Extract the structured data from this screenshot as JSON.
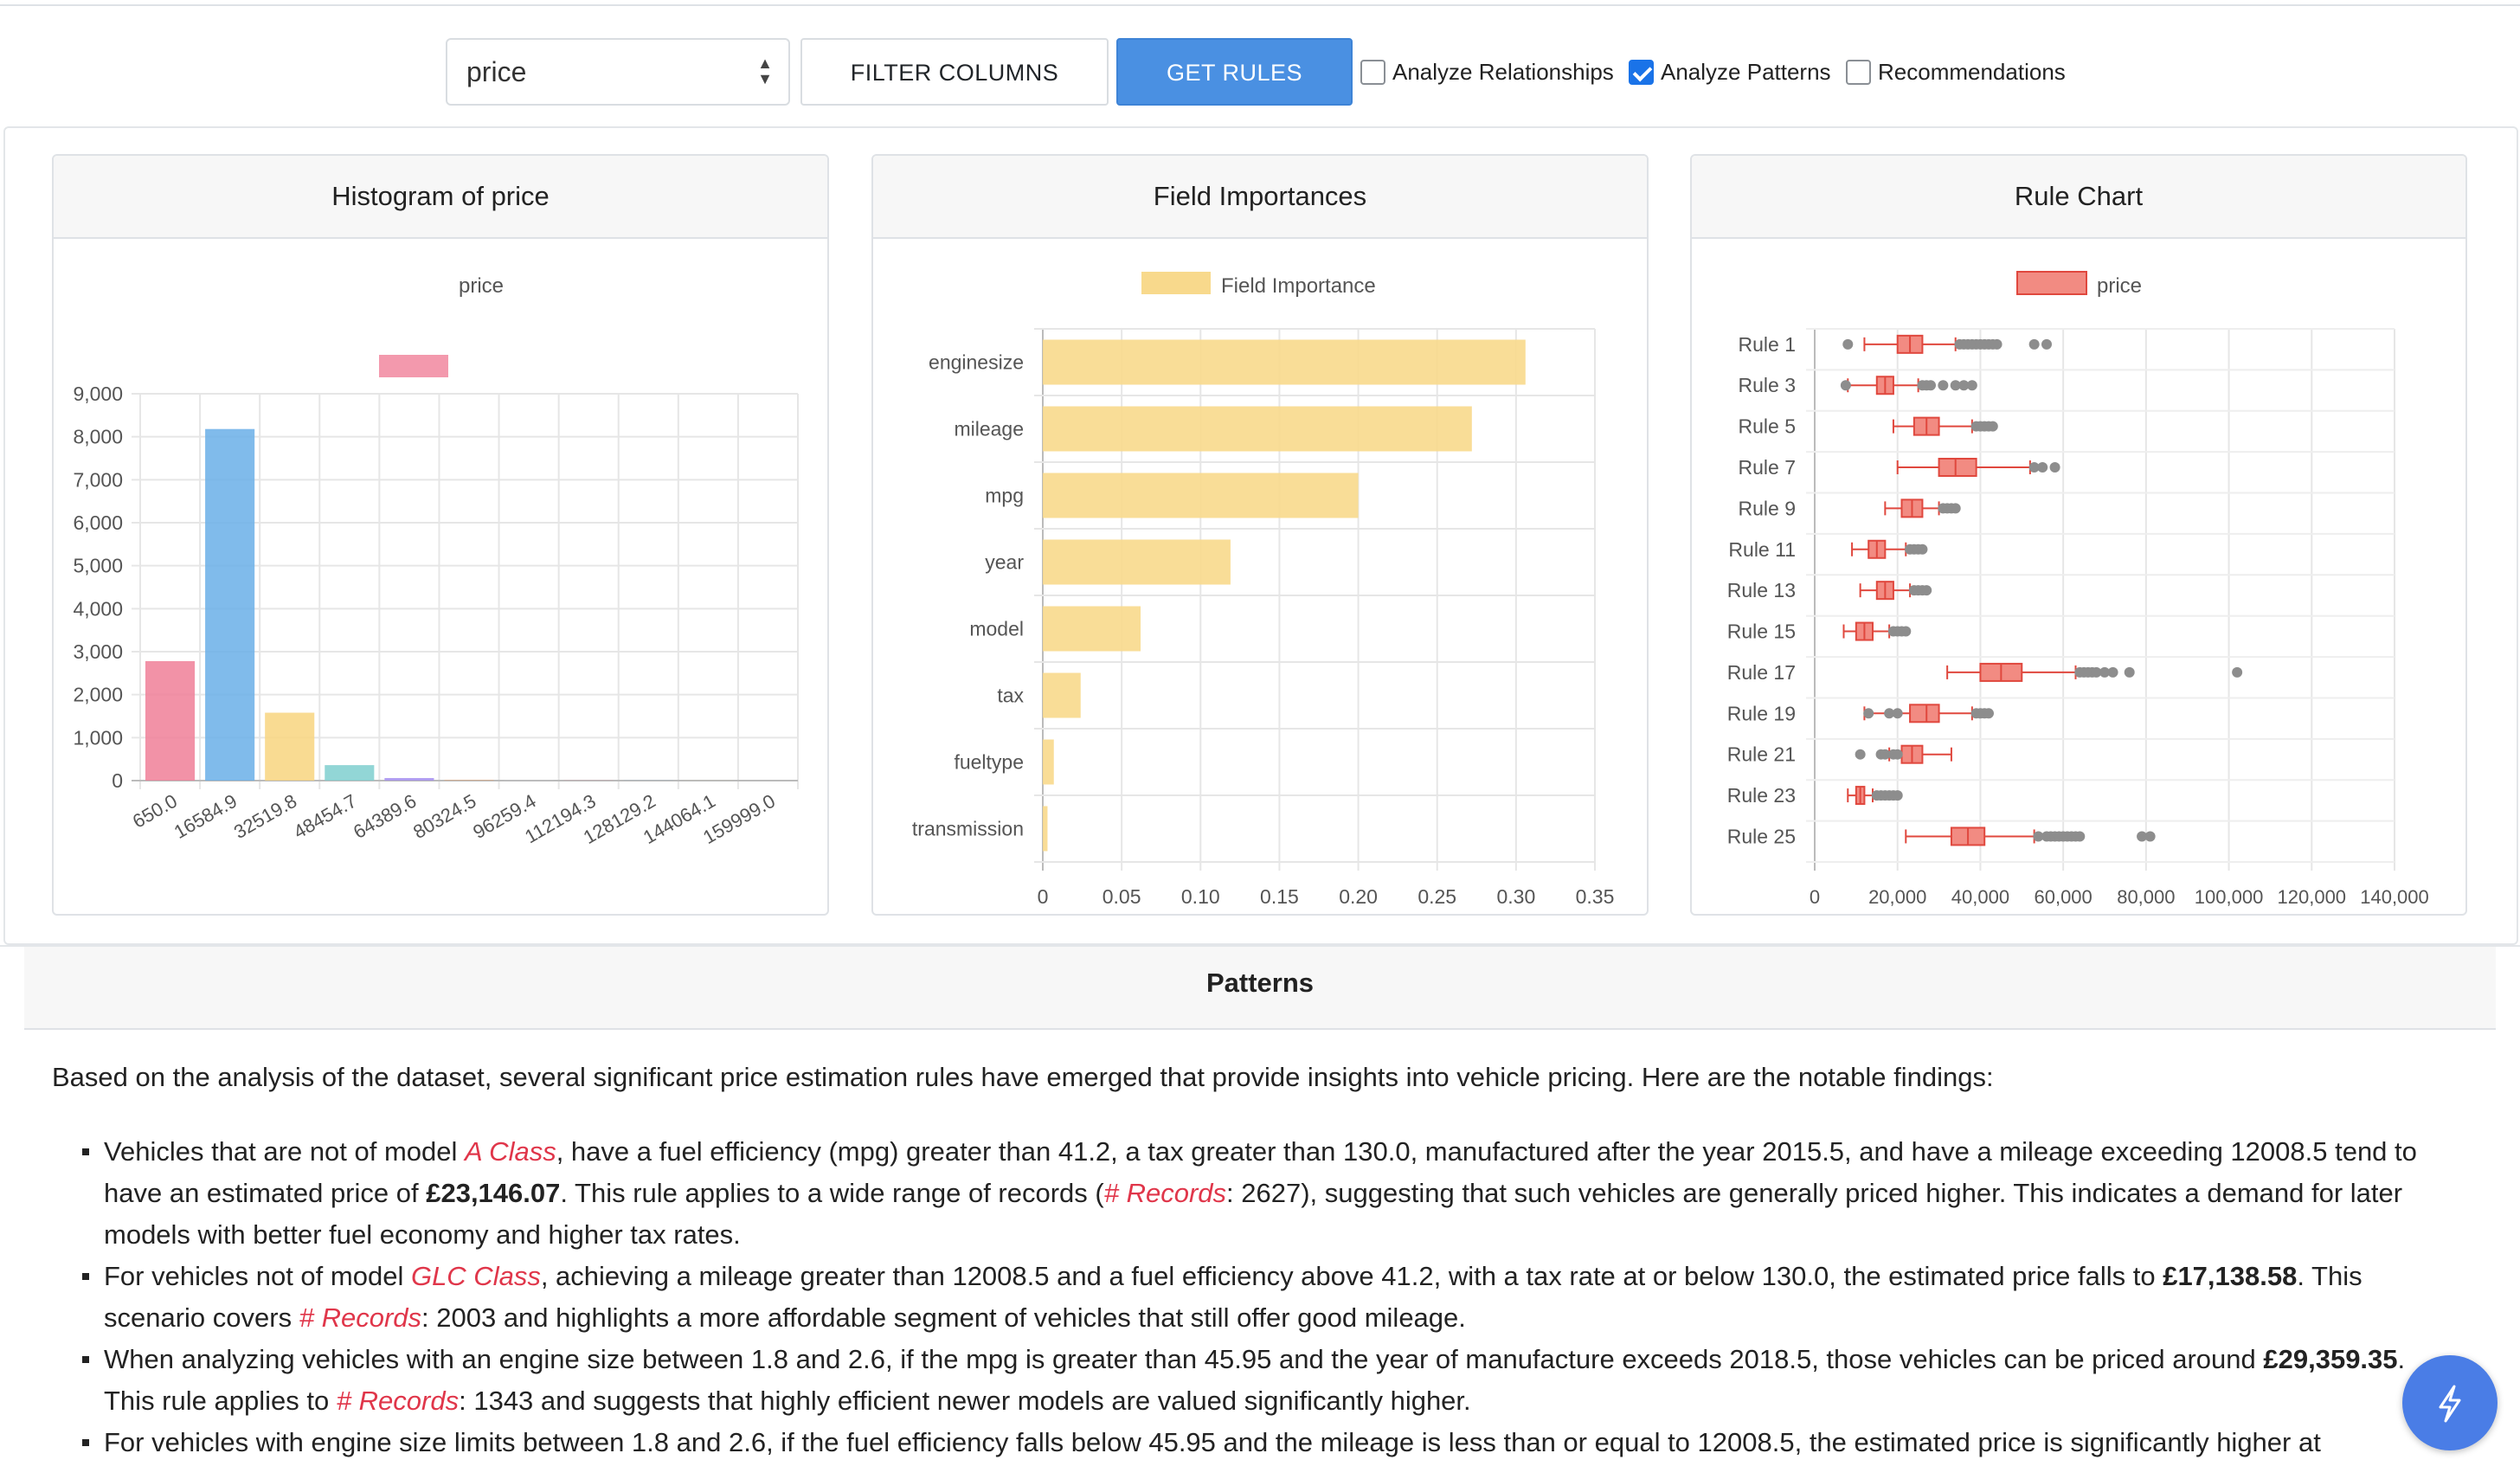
{
  "toolbar": {
    "target_select": "price",
    "filter_button": "FILTER COLUMNS",
    "rules_button": "GET RULES",
    "checkboxes": [
      {
        "label": "Analyze Relationships",
        "checked": false
      },
      {
        "label": "Analyze Patterns",
        "checked": true
      },
      {
        "label": "Recommendations",
        "checked": false
      }
    ]
  },
  "cards": {
    "histogram_title": "Histogram of price",
    "importance_title": "Field Importances",
    "rule_title": "Rule Chart"
  },
  "chart_data": [
    {
      "type": "bar",
      "title": "Histogram of price",
      "legend": "price",
      "categories": [
        "650.0",
        "16584.9",
        "32519.8",
        "48454.7",
        "64389.6",
        "80324.5",
        "96259.4",
        "112194.3",
        "128129.2",
        "144064.1",
        "159999.0"
      ],
      "values": [
        2780,
        8180,
        1580,
        360,
        60,
        10,
        5,
        3,
        2,
        1,
        0
      ],
      "yticks": [
        "0",
        "1,000",
        "2,000",
        "3,000",
        "4,000",
        "5,000",
        "6,000",
        "7,000",
        "8,000",
        "9,000"
      ],
      "ylim": [
        0,
        9000
      ],
      "colors": [
        "#f07f98",
        "#6aafe8",
        "#f8d57f",
        "#7fcfcf",
        "#a48ff0",
        "#f5a46a",
        "#c9cbcf",
        "#f07f98",
        "#6aafe8",
        "#f8d57f",
        "#7fcfcf"
      ]
    },
    {
      "type": "bar",
      "orientation": "horizontal",
      "title": "Field Importances",
      "legend": "Field Importance",
      "categories": [
        "enginesize",
        "mileage",
        "mpg",
        "year",
        "model",
        "tax",
        "fueltype",
        "transmission"
      ],
      "values": [
        0.306,
        0.272,
        0.2,
        0.119,
        0.062,
        0.024,
        0.007,
        0.003
      ],
      "xticks": [
        "0",
        "0.05",
        "0.10",
        "0.15",
        "0.20",
        "0.25",
        "0.30",
        "0.35"
      ],
      "xlim": [
        0,
        0.35
      ],
      "color": "#f8d98c"
    },
    {
      "type": "boxplot",
      "title": "Rule Chart",
      "legend": "price",
      "ylabels": [
        "Rule 1",
        "Rule 3",
        "Rule 5",
        "Rule 7",
        "Rule 9",
        "Rule 11",
        "Rule 13",
        "Rule 15",
        "Rule 17",
        "Rule 19",
        "Rule 21",
        "Rule 23",
        "Rule 25"
      ],
      "xticks": [
        "0",
        "20,000",
        "40,000",
        "60,000",
        "80,000",
        "100,000",
        "120,000",
        "140,000"
      ],
      "xlim": [
        0,
        140000
      ],
      "boxes": [
        {
          "min": 12000,
          "q1": 20000,
          "med": 23000,
          "q3": 26000,
          "max": 34000,
          "out": [
            8000,
            35000,
            36000,
            37000,
            38000,
            39000,
            40000,
            41000,
            42000,
            43000,
            44000,
            53000,
            56000
          ]
        },
        {
          "min": 8000,
          "q1": 15000,
          "med": 17000,
          "q3": 19000,
          "max": 25000,
          "out": [
            7500,
            26000,
            27000,
            28000,
            31000,
            34000,
            36000,
            38000
          ]
        },
        {
          "min": 19000,
          "q1": 24000,
          "med": 27000,
          "q3": 30000,
          "max": 38000,
          "out": [
            39000,
            40000,
            41000,
            42000,
            43000
          ]
        },
        {
          "min": 20000,
          "q1": 30000,
          "med": 34000,
          "q3": 39000,
          "max": 52000,
          "out": [
            53000,
            55000,
            58000
          ]
        },
        {
          "min": 17000,
          "q1": 21000,
          "med": 23500,
          "q3": 26000,
          "max": 30000,
          "out": [
            31000,
            32000,
            33000,
            34000
          ]
        },
        {
          "min": 9000,
          "q1": 13000,
          "med": 15000,
          "q3": 17000,
          "max": 22000,
          "out": [
            23000,
            24000,
            25000,
            26000
          ]
        },
        {
          "min": 11000,
          "q1": 15000,
          "med": 17000,
          "q3": 19000,
          "max": 23000,
          "out": [
            24000,
            25000,
            26000,
            27000
          ]
        },
        {
          "min": 7000,
          "q1": 10000,
          "med": 12000,
          "q3": 14000,
          "max": 18000,
          "out": [
            19000,
            20000,
            21000,
            22000
          ]
        },
        {
          "min": 32000,
          "q1": 40000,
          "med": 45000,
          "q3": 50000,
          "max": 63000,
          "out": [
            64000,
            65000,
            66000,
            67000,
            68000,
            70000,
            72000,
            76000,
            102000
          ]
        },
        {
          "min": 12000,
          "q1": 23000,
          "med": 27000,
          "q3": 30000,
          "max": 38000,
          "out": [
            13000,
            18000,
            20000,
            39000,
            40000,
            41000,
            42000
          ]
        },
        {
          "min": 18000,
          "q1": 21000,
          "med": 23500,
          "q3": 26000,
          "max": 33000,
          "out": [
            11000,
            16000,
            17000,
            19000,
            20000
          ]
        },
        {
          "min": 8000,
          "q1": 10000,
          "med": 11000,
          "q3": 12000,
          "max": 14000,
          "out": [
            15000,
            16000,
            17000,
            18000,
            19000,
            20000
          ]
        },
        {
          "min": 22000,
          "q1": 33000,
          "med": 37000,
          "q3": 41000,
          "max": 53000,
          "out": [
            54000,
            56000,
            57000,
            58000,
            59000,
            60000,
            61000,
            62000,
            63000,
            64000,
            79000,
            81000
          ]
        }
      ],
      "box_color": "#f28b82",
      "line_color": "#e0483e",
      "outlier_color": "#8d8d8d"
    }
  ],
  "patterns": {
    "title": "Patterns",
    "intro": "Based on the analysis of the dataset, several significant price estimation rules have emerged that provide insights into vehicle pricing. Here are the notable findings:",
    "items": [
      {
        "t1": "Vehicles that are not of model ",
        "r1": "A Class",
        "t2": ", have a fuel efficiency (mpg) greater than 41.2, a tax greater than 130.0, manufactured after the year 2015.5, and have a mileage exceeding 12008.5 tend to have an estimated price of ",
        "b1": "£23,146.07",
        "t3": ". This rule applies to a wide range of records (",
        "r2": "# Records",
        "t4": ": 2627), suggesting that such vehicles are generally priced higher. This indicates a demand for later models with better fuel economy and higher tax rates."
      },
      {
        "t1": "For vehicles not of model ",
        "r1": "GLC Class",
        "t2": ", achieving a mileage greater than 12008.5 and a fuel efficiency above 41.2, with a tax rate at or below 130.0, the estimated price falls to ",
        "b1": "£17,138.58",
        "t3": ". This scenario covers ",
        "r2": "# Records",
        "t4": ": 2003 and highlights a more affordable segment of vehicles that still offer good mileage."
      },
      {
        "t1": "When analyzing vehicles with an engine size between 1.8 and 2.6, if the mpg is greater than 45.95 and the year of manufacture exceeds 2018.5, those vehicles can be priced around ",
        "r1": "",
        "t2": "",
        "b1": "£29,359.35",
        "t3": ". This rule applies to ",
        "r2": "# Records",
        "t4": ": 1343 and suggests that highly efficient newer models are valued significantly higher."
      },
      {
        "t1": "For vehicles with engine size limits between 1.8 and 2.6, if the fuel efficiency falls below 45.95 and the mileage is less than or equal to 12008.5, the estimated price is significantly higher at",
        "r1": "",
        "t2": "",
        "b1": "",
        "t3": "",
        "r2": "",
        "t4": ""
      }
    ]
  }
}
